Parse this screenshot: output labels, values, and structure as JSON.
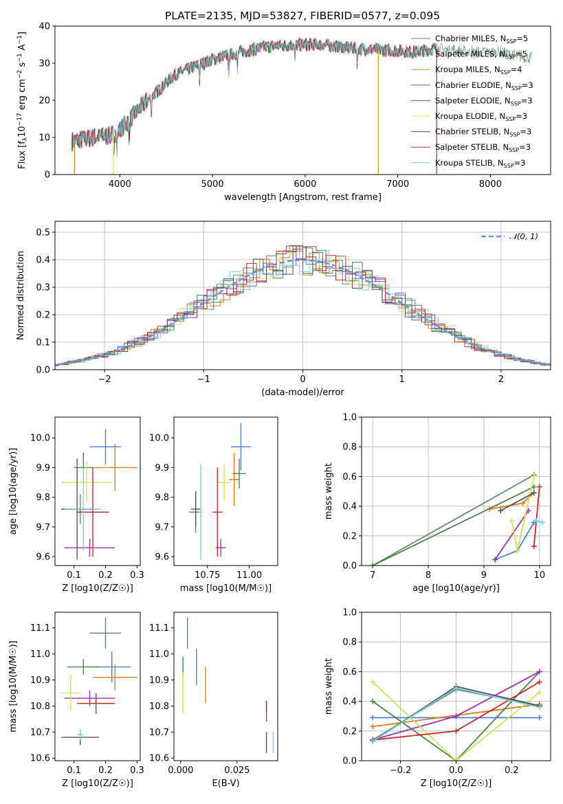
{
  "figure_title": "PLATE=2135, MJD=53827, FIBERID=0577, z=0.095",
  "colors": [
    "#5e8a6e",
    "#1f77b4",
    "#e07b1f",
    "#4d7f4d",
    "#9b30b5",
    "#d4e157",
    "#555555",
    "#c62828",
    "#76d0e0"
  ],
  "legend_items": [
    {
      "label": "Chabrier MILES, N",
      "sub": "SSP",
      "suffix": "=5",
      "color": "#5e8a6e"
    },
    {
      "label": "Salpeter MILES, N",
      "sub": "SSP",
      "suffix": "=5",
      "color": "#4c7fd6"
    },
    {
      "label": "Kroupa MILES, N",
      "sub": "SSP",
      "suffix": "=4",
      "color": "#e07b1f"
    },
    {
      "label": "Chabrier ELODIE, N",
      "sub": "SSP",
      "suffix": "=3",
      "color": "#4d7f4d"
    },
    {
      "label": "Salpeter ELODIE, N",
      "sub": "SSP",
      "suffix": "=3",
      "color": "#9b30b5"
    },
    {
      "label": "Kroupa ELODIE, N",
      "sub": "SSP",
      "suffix": "=3",
      "color": "#d4e157"
    },
    {
      "label": "Chabrier STELIB, N",
      "sub": "SSP",
      "suffix": "=3",
      "color": "#555555"
    },
    {
      "label": "Salpeter STELIB, N",
      "sub": "SSP",
      "suffix": "=3",
      "color": "#c62828"
    },
    {
      "label": "Kroupa STELIB, N",
      "sub": "SSP",
      "suffix": "=3",
      "color": "#76d0e0"
    }
  ],
  "hist_legend_label": "𝒩(0, 1)",
  "chart_data": [
    {
      "id": "spectrum",
      "type": "line",
      "title": "PLATE=2135, MJD=53827, FIBERID=0577, z=0.095",
      "xlabel": "wavelength [Angstrom, rest frame]",
      "ylabel": "Flux [f_λ10^-17 erg cm^-2 s^-1 A^-1]",
      "xlim": [
        3300,
        8650
      ],
      "ylim": [
        0,
        40
      ],
      "xticks": [
        4000,
        5000,
        6000,
        7000,
        8000
      ],
      "yticks": [
        0,
        10,
        20,
        30,
        40
      ],
      "continuum_x": [
        3500,
        3700,
        3900,
        4000,
        4300,
        4600,
        5000,
        5300,
        5600,
        5900,
        6200,
        6500,
        6900,
        7200,
        7400,
        7600,
        7800,
        8100,
        8300,
        8500
      ],
      "continuum_y": [
        9,
        10,
        10.5,
        12,
        20,
        27,
        31,
        33,
        34.5,
        35,
        35,
        34,
        33.5,
        33,
        34,
        33.5,
        33,
        33,
        32,
        31
      ],
      "drops_to_zero_x": [
        3510,
        3930,
        6790,
        7420
      ]
    },
    {
      "id": "residuals",
      "type": "histogram",
      "xlabel": "(data-model)/error",
      "ylabel": "Normed distribution",
      "xlim": [
        -2.5,
        2.5
      ],
      "ylim": [
        0,
        0.54
      ],
      "xticks": [
        -2,
        -1,
        0,
        1,
        2
      ],
      "yticks": [
        0.0,
        0.1,
        0.2,
        0.3,
        0.4,
        0.5
      ],
      "reference_curve": "N(0,1)"
    },
    {
      "id": "age-vs-Z",
      "type": "scatter",
      "xlabel": "Z [log10(Z/Z☉)]",
      "ylabel": "age [log10(age/yr)]",
      "xlim": [
        0.04,
        0.31
      ],
      "ylim": [
        9.57,
        10.07
      ],
      "xticks": [
        0.1,
        0.2,
        0.3
      ],
      "yticks": [
        9.6,
        9.7,
        9.8,
        9.9,
        10.0
      ],
      "points": [
        {
          "x": 0.12,
          "y": 9.76,
          "xerr": 0.06,
          "yerr": 0.05
        },
        {
          "x": 0.2,
          "y": 9.97,
          "xerr": 0.05,
          "yerr": 0.06
        },
        {
          "x": 0.23,
          "y": 9.9,
          "xerr": 0.07,
          "yerr": 0.08
        },
        {
          "x": 0.13,
          "y": 9.9,
          "xerr": 0.03,
          "yerr": 0.05
        },
        {
          "x": 0.15,
          "y": 9.63,
          "xerr": 0.08,
          "yerr": 0.03
        },
        {
          "x": 0.14,
          "y": 9.85,
          "xerr": 0.08,
          "yerr": 0.07
        },
        {
          "x": 0.11,
          "y": 9.76,
          "xerr": 0.05,
          "yerr": 0.17
        },
        {
          "x": 0.16,
          "y": 9.75,
          "xerr": 0.05,
          "yerr": 0.15
        },
        {
          "x": 0.13,
          "y": 9.76,
          "xerr": 0.06,
          "yerr": 0.14
        }
      ]
    },
    {
      "id": "age-vs-mass",
      "type": "scatter",
      "xlabel": "mass [log10(M/M☉)]",
      "ylabel": "",
      "xlim": [
        10.55,
        11.17
      ],
      "ylim": [
        9.57,
        10.07
      ],
      "xticks": [
        10.75,
        11.0
      ],
      "yticks": [
        9.6,
        9.7,
        9.8,
        9.9,
        10.0
      ],
      "points": [
        {
          "x": 10.68,
          "y": 9.75,
          "xerr": 0.04,
          "yerr": 0.07
        },
        {
          "x": 10.95,
          "y": 9.97,
          "xerr": 0.06,
          "yerr": 0.08
        },
        {
          "x": 10.91,
          "y": 9.86,
          "xerr": 0.03,
          "yerr": 0.09
        },
        {
          "x": 10.94,
          "y": 9.88,
          "xerr": 0.04,
          "yerr": 0.05
        },
        {
          "x": 10.83,
          "y": 9.63,
          "xerr": 0.03,
          "yerr": 0.03
        },
        {
          "x": 10.85,
          "y": 9.85,
          "xerr": 0.04,
          "yerr": 0.06
        },
        {
          "x": 10.68,
          "y": 9.76,
          "xerr": 0.03,
          "yerr": 0.06
        },
        {
          "x": 10.81,
          "y": 9.75,
          "xerr": 0.03,
          "yerr": 0.15
        },
        {
          "x": 10.71,
          "y": 9.75,
          "xerr": 0.01,
          "yerr": 0.16
        }
      ]
    },
    {
      "id": "weight-vs-age",
      "type": "line",
      "xlabel": "age  [log10(age/yr)]",
      "ylabel": "mass weight",
      "xlim": [
        6.8,
        10.2
      ],
      "ylim": [
        0.0,
        1.0
      ],
      "xticks": [
        7,
        8,
        9,
        10
      ],
      "yticks": [
        0.0,
        0.2,
        0.4,
        0.6,
        0.8,
        1.0
      ],
      "series": [
        {
          "x": [
            7.0,
            9.9
          ],
          "y": [
            0.0,
            0.61
          ]
        },
        {
          "x": [
            9.2,
            9.6,
            9.9
          ],
          "y": [
            0.04,
            0.1,
            0.29
          ]
        },
        {
          "x": [
            9.1,
            9.7,
            9.9
          ],
          "y": [
            0.38,
            0.42,
            0.49
          ]
        },
        {
          "x": [
            7.0,
            9.9
          ],
          "y": [
            0.0,
            0.53
          ]
        },
        {
          "x": [
            9.2,
            9.8
          ],
          "y": [
            0.04,
            0.37
          ]
        },
        {
          "x": [
            9.5,
            9.6,
            9.9
          ],
          "y": [
            0.3,
            0.1,
            0.6
          ]
        },
        {
          "x": [
            9.3,
            9.9
          ],
          "y": [
            0.37,
            0.49
          ]
        },
        {
          "x": [
            9.9,
            10.0
          ],
          "y": [
            0.13,
            0.53
          ]
        },
        {
          "x": [
            9.95,
            10.05
          ],
          "y": [
            0.3,
            0.29
          ]
        }
      ]
    },
    {
      "id": "mass-vs-Z",
      "type": "scatter",
      "xlabel": "Z [log10(Z/Z☉)]",
      "ylabel": "mass [log10(M/M☉)]",
      "xlim": [
        0.04,
        0.31
      ],
      "ylim": [
        10.59,
        11.16
      ],
      "xticks": [
        0.1,
        0.2,
        0.3
      ],
      "yticks": [
        10.6,
        10.7,
        10.8,
        10.9,
        11.0,
        11.1
      ],
      "points": [
        {
          "x": 0.2,
          "y": 11.08,
          "xerr": 0.05,
          "yerr": 0.06
        },
        {
          "x": 0.22,
          "y": 10.95,
          "xerr": 0.06,
          "yerr": 0.06
        },
        {
          "x": 0.23,
          "y": 10.91,
          "xerr": 0.07,
          "yerr": 0.05
        },
        {
          "x": 0.13,
          "y": 10.95,
          "xerr": 0.05,
          "yerr": 0.03
        },
        {
          "x": 0.15,
          "y": 10.83,
          "xerr": 0.08,
          "yerr": 0.03
        },
        {
          "x": 0.09,
          "y": 10.85,
          "xerr": 0.03,
          "yerr": 0.07
        },
        {
          "x": 0.12,
          "y": 10.68,
          "xerr": 0.06,
          "yerr": 0.03
        },
        {
          "x": 0.17,
          "y": 10.81,
          "xerr": 0.06,
          "yerr": 0.04
        },
        {
          "x": 0.12,
          "y": 10.69,
          "xerr": 0.01,
          "yerr": 0.02
        }
      ]
    },
    {
      "id": "mass-vs-ebv",
      "type": "scatter",
      "xlabel": "E(B-V)",
      "ylabel": "",
      "xlim": [
        -0.003,
        0.043
      ],
      "ylim": [
        10.59,
        11.16
      ],
      "xticks": [
        0.0,
        0.025
      ],
      "yticks": [
        10.6,
        10.7,
        10.8,
        10.9,
        11.0,
        11.1
      ],
      "points": [
        {
          "x": 0.003,
          "y": 11.08,
          "xerr": 0.0,
          "yerr": 0.06
        },
        {
          "x": 0.007,
          "y": 10.95,
          "xerr": 0.0,
          "yerr": 0.07
        },
        {
          "x": 0.011,
          "y": 10.88,
          "xerr": 0.0,
          "yerr": 0.07
        },
        {
          "x": 0.001,
          "y": 10.95,
          "xerr": 0.0,
          "yerr": 0.04
        },
        {
          "x": 0.038,
          "y": 10.78,
          "xerr": 0.0,
          "yerr": 0.04
        },
        {
          "x": 0.001,
          "y": 10.85,
          "xerr": 0.0,
          "yerr": 0.08
        },
        {
          "x": 0.038,
          "y": 10.66,
          "xerr": 0.0,
          "yerr": 0.04
        },
        {
          "x": 0.038,
          "y": 10.8,
          "xerr": 0.0,
          "yerr": 0.02
        },
        {
          "x": 0.041,
          "y": 10.66,
          "xerr": 0.0,
          "yerr": 0.04
        }
      ]
    },
    {
      "id": "weight-vs-Z",
      "type": "line",
      "xlabel": "Z [log10(Z/Z☉)]",
      "ylabel": "mass weight",
      "xlim": [
        -0.34,
        0.34
      ],
      "ylim": [
        0.0,
        1.0
      ],
      "xticks": [
        -0.2,
        0.0,
        0.2
      ],
      "yticks": [
        0.0,
        0.2,
        0.4,
        0.6,
        0.8,
        1.0
      ],
      "series": [
        {
          "x": [
            -0.3,
            0.0,
            0.3
          ],
          "y": [
            0.14,
            0.48,
            0.37
          ]
        },
        {
          "x": [
            -0.3,
            0.3
          ],
          "y": [
            0.29,
            0.29
          ]
        },
        {
          "x": [
            -0.3,
            0.3
          ],
          "y": [
            0.23,
            0.38
          ]
        },
        {
          "x": [
            -0.3,
            0.0,
            0.3
          ],
          "y": [
            0.4,
            0.0,
            0.6
          ]
        },
        {
          "x": [
            -0.3,
            0.0,
            0.3
          ],
          "y": [
            0.14,
            0.3,
            0.6
          ]
        },
        {
          "x": [
            -0.3,
            0.0,
            0.3
          ],
          "y": [
            0.53,
            0.0,
            0.46
          ]
        },
        {
          "x": [
            -0.3,
            0.0,
            0.3
          ],
          "y": [
            0.13,
            0.5,
            0.37
          ]
        },
        {
          "x": [
            -0.3,
            0.0,
            0.3
          ],
          "y": [
            0.14,
            0.2,
            0.53
          ]
        },
        {
          "x": [
            -0.3,
            0.0,
            0.3
          ],
          "y": [
            0.13,
            0.49,
            0.36
          ]
        }
      ]
    }
  ]
}
